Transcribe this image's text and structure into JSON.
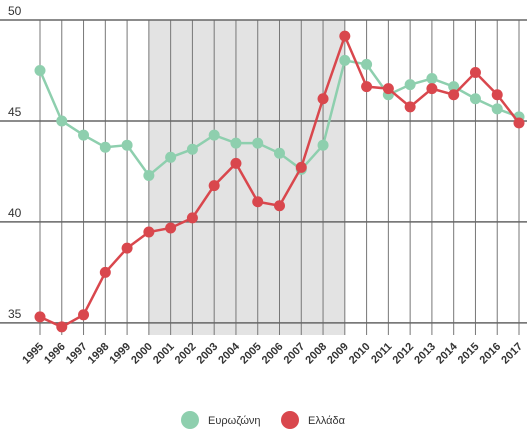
{
  "chart_data": {
    "type": "line",
    "categories": [
      "1995",
      "1996",
      "1997",
      "1998",
      "1999",
      "2000",
      "2001",
      "2002",
      "2003",
      "2004",
      "2005",
      "2006",
      "2007",
      "2008",
      "2009",
      "2010",
      "2011",
      "2012",
      "2013",
      "2014",
      "2015",
      "2016",
      "2017"
    ],
    "series": [
      {
        "name": "Ευρωζώνη",
        "color": "#8ecfae",
        "values": [
          47.5,
          45.0,
          44.3,
          43.7,
          43.8,
          42.3,
          43.2,
          43.6,
          44.3,
          43.9,
          43.9,
          43.4,
          42.6,
          43.8,
          48.0,
          47.8,
          46.3,
          46.8,
          47.1,
          46.7,
          46.1,
          45.6,
          45.2
        ]
      },
      {
        "name": "Ελλάδα",
        "color": "#d9474d",
        "values": [
          35.3,
          34.8,
          35.4,
          37.5,
          38.7,
          39.5,
          39.7,
          40.2,
          41.8,
          42.9,
          41.0,
          40.8,
          42.7,
          46.1,
          49.2,
          46.7,
          46.6,
          45.7,
          46.6,
          46.3,
          47.4,
          46.3,
          44.9
        ]
      }
    ],
    "ylim": [
      34.4,
      50
    ],
    "yticks": [
      35,
      40,
      45,
      50
    ],
    "grid": true,
    "highlight": {
      "from": 5,
      "to": 14,
      "color": "#e3e3e3"
    }
  }
}
